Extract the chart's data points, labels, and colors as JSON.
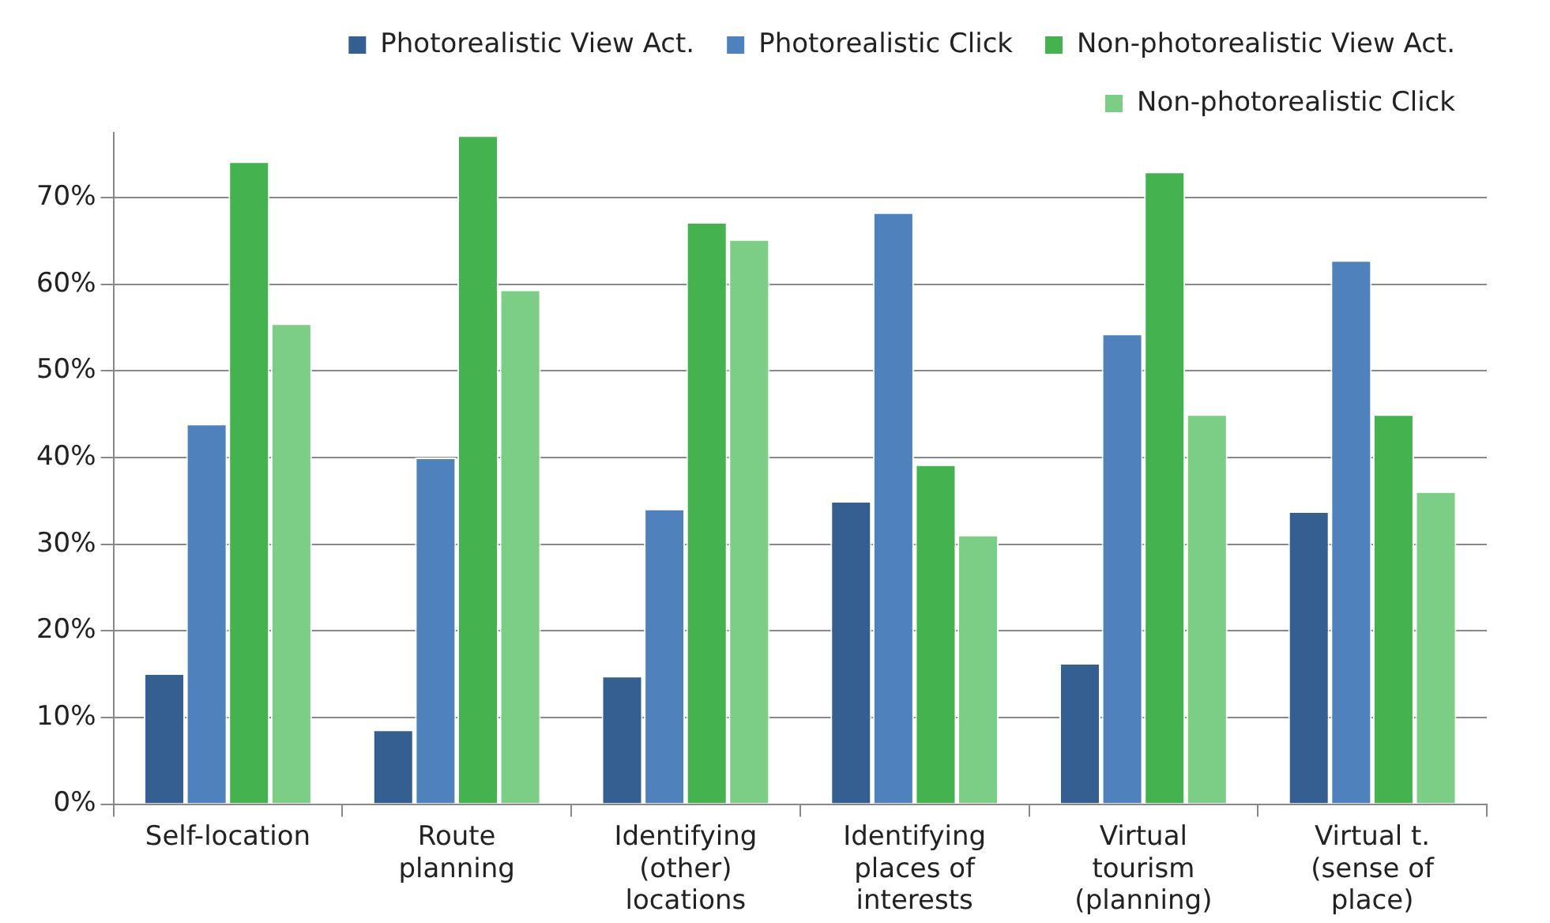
{
  "chart_data": {
    "type": "bar",
    "categories": [
      "Self-location",
      "Route planning",
      "Identifying (other) locations",
      "Identifying places of interests",
      "Virtual tourism (planning)",
      "Virtual t. (sense of place)"
    ],
    "series": [
      {
        "name": "Photorealistic View Act.",
        "color": "#355f91",
        "values": [
          15.1,
          8.6,
          14.8,
          35.0,
          16.3,
          33.8
        ]
      },
      {
        "name": "Photorealistic Click",
        "color": "#4f81bd",
        "values": [
          43.9,
          40.0,
          34.1,
          68.3,
          54.3,
          62.8
        ]
      },
      {
        "name": "Non-photorealistic View Act.",
        "color": "#44b34f",
        "values": [
          74.2,
          77.2,
          67.2,
          39.2,
          73.0,
          45.0
        ]
      },
      {
        "name": "Non-photorealistic Click",
        "color": "#7ccd85",
        "values": [
          55.5,
          59.4,
          65.2,
          31.1,
          45.0,
          36.1
        ]
      }
    ],
    "ylim": [
      0,
      77.5
    ],
    "yticks": [
      {
        "value": 0,
        "label": "0%"
      },
      {
        "value": 10,
        "label": "10%"
      },
      {
        "value": 20,
        "label": "20%"
      },
      {
        "value": 30,
        "label": "30%"
      },
      {
        "value": 40,
        "label": "40%"
      },
      {
        "value": 50,
        "label": "50%"
      },
      {
        "value": 60,
        "label": "60%"
      },
      {
        "value": 70,
        "label": "70%"
      }
    ],
    "grid": "y",
    "legend": "top right"
  }
}
